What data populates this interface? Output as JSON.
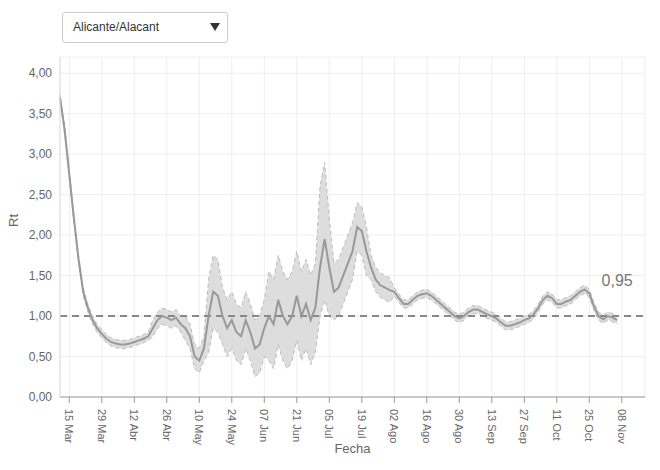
{
  "chart_data": {
    "type": "line",
    "dropdown": "Alicante/Alacant",
    "x_label": "Fecha",
    "y_label": "Rt",
    "color": "#999999",
    "band_color": "#dddddd",
    "categories": [
      null,
      null,
      "15 Mar",
      null,
      null,
      null,
      null,
      null,
      null,
      "29 Mar",
      null,
      null,
      null,
      null,
      null,
      null,
      "12 Abr",
      null,
      null,
      null,
      null,
      null,
      null,
      "26 Abr",
      null,
      null,
      null,
      null,
      null,
      null,
      "10 May",
      null,
      null,
      null,
      null,
      null,
      null,
      "24 May",
      null,
      null,
      null,
      null,
      null,
      null,
      "07 Jun",
      null,
      null,
      null,
      null,
      null,
      null,
      "21 Jun",
      null,
      null,
      null,
      null,
      null,
      null,
      "05 Jul",
      null,
      null,
      null,
      null,
      null,
      null,
      "19 Jul",
      null,
      null,
      null,
      null,
      null,
      null,
      "02 Ago",
      null,
      null,
      null,
      null,
      null,
      null,
      "16 Ago",
      null,
      null,
      null,
      null,
      null,
      null,
      "30 Ago",
      null,
      null,
      null,
      null,
      null,
      null,
      "13 Sep",
      null,
      null,
      null,
      null,
      null,
      null,
      "27 Sep",
      null,
      null,
      null,
      null,
      null,
      null,
      "11 Oct",
      null,
      null,
      null,
      null,
      null,
      null,
      "25 Oct",
      null,
      null,
      null,
      null,
      null,
      null,
      "08 Nov",
      null,
      null,
      null,
      null,
      null
    ],
    "values": [
      3.7,
      3.3,
      2.75,
      2.2,
      1.7,
      1.3,
      1.1,
      0.95,
      0.85,
      0.78,
      0.72,
      0.68,
      0.66,
      0.65,
      0.65,
      0.66,
      0.68,
      0.7,
      0.72,
      0.75,
      0.85,
      0.95,
      1.0,
      0.98,
      0.95,
      0.98,
      0.9,
      0.85,
      0.75,
      0.5,
      0.45,
      0.6,
      1.0,
      1.3,
      1.25,
      1.0,
      0.85,
      0.95,
      0.8,
      0.75,
      0.95,
      0.8,
      0.6,
      0.65,
      0.85,
      1.0,
      0.9,
      1.2,
      1.0,
      0.9,
      1.0,
      1.25,
      1.0,
      1.15,
      0.95,
      1.1,
      1.6,
      1.95,
      1.6,
      1.3,
      1.35,
      1.5,
      1.65,
      1.8,
      2.1,
      2.05,
      1.8,
      1.6,
      1.45,
      1.38,
      1.35,
      1.32,
      1.3,
      1.22,
      1.15,
      1.15,
      1.2,
      1.25,
      1.27,
      1.28,
      1.25,
      1.2,
      1.15,
      1.1,
      1.05,
      1.0,
      0.97,
      1.0,
      1.05,
      1.08,
      1.08,
      1.05,
      1.02,
      1.0,
      0.97,
      0.92,
      0.88,
      0.88,
      0.9,
      0.92,
      0.95,
      0.97,
      1.02,
      1.1,
      1.2,
      1.25,
      1.22,
      1.15,
      1.15,
      1.18,
      1.2,
      1.25,
      1.3,
      1.33,
      1.28,
      1.12,
      1.0,
      0.96,
      1.0,
      0.98,
      0.95,
      null,
      null,
      null,
      null,
      null,
      null
    ],
    "lower": [
      3.65,
      3.25,
      2.7,
      2.15,
      1.65,
      1.25,
      1.05,
      0.9,
      0.8,
      0.73,
      0.67,
      0.63,
      0.61,
      0.6,
      0.6,
      0.61,
      0.63,
      0.65,
      0.67,
      0.7,
      0.75,
      0.85,
      0.9,
      0.88,
      0.85,
      0.88,
      0.8,
      0.7,
      0.6,
      0.35,
      0.3,
      0.45,
      0.55,
      0.85,
      0.8,
      0.65,
      0.5,
      0.6,
      0.45,
      0.4,
      0.6,
      0.45,
      0.25,
      0.3,
      0.5,
      0.45,
      0.35,
      0.65,
      0.45,
      0.35,
      0.45,
      0.7,
      0.45,
      0.6,
      0.4,
      0.55,
      1.0,
      1.2,
      1.0,
      0.95,
      1.0,
      1.15,
      1.3,
      1.45,
      1.8,
      1.75,
      1.5,
      1.45,
      1.3,
      1.23,
      1.2,
      1.17,
      1.25,
      1.17,
      1.1,
      1.1,
      1.15,
      1.2,
      1.22,
      1.23,
      1.2,
      1.15,
      1.1,
      1.05,
      1.0,
      0.95,
      0.92,
      0.95,
      1.0,
      1.03,
      1.03,
      1.0,
      0.97,
      0.95,
      0.92,
      0.87,
      0.83,
      0.83,
      0.85,
      0.87,
      0.9,
      0.92,
      0.97,
      1.05,
      1.15,
      1.2,
      1.17,
      1.1,
      1.1,
      1.13,
      1.15,
      1.2,
      1.25,
      1.28,
      1.23,
      1.07,
      0.95,
      0.91,
      0.95,
      0.93,
      0.9,
      null,
      null,
      null,
      null,
      null,
      null
    ],
    "upper": [
      3.75,
      3.35,
      2.8,
      2.25,
      1.75,
      1.35,
      1.15,
      1.0,
      0.9,
      0.83,
      0.77,
      0.73,
      0.71,
      0.7,
      0.7,
      0.71,
      0.73,
      0.75,
      0.77,
      0.8,
      0.95,
      1.05,
      1.1,
      1.08,
      1.05,
      1.08,
      1.0,
      1.0,
      0.9,
      0.65,
      0.6,
      0.75,
      1.45,
      1.75,
      1.7,
      1.35,
      1.2,
      1.3,
      1.15,
      1.1,
      1.3,
      1.15,
      0.95,
      1.0,
      1.2,
      1.55,
      1.45,
      1.75,
      1.55,
      1.45,
      1.55,
      1.8,
      1.55,
      1.7,
      1.5,
      1.65,
      2.6,
      2.9,
      2.2,
      1.65,
      1.7,
      1.85,
      2.0,
      2.15,
      2.4,
      2.35,
      2.1,
      1.75,
      1.6,
      1.53,
      1.5,
      1.47,
      1.35,
      1.27,
      1.2,
      1.2,
      1.25,
      1.3,
      1.32,
      1.33,
      1.3,
      1.25,
      1.2,
      1.15,
      1.1,
      1.05,
      1.02,
      1.05,
      1.1,
      1.13,
      1.13,
      1.1,
      1.07,
      1.05,
      1.02,
      0.97,
      0.93,
      0.93,
      0.95,
      0.97,
      1.0,
      1.02,
      1.07,
      1.15,
      1.25,
      1.3,
      1.27,
      1.2,
      1.2,
      1.23,
      1.25,
      1.3,
      1.35,
      1.38,
      1.33,
      1.17,
      1.05,
      1.01,
      1.05,
      1.03,
      1.0,
      null,
      null,
      null,
      null,
      null,
      null
    ],
    "ylim": [
      0,
      4.2
    ],
    "yticks": [
      {
        "value": 0,
        "label": "0,00"
      },
      {
        "value": 0.5,
        "label": "0,50"
      },
      {
        "value": 1,
        "label": "1,00"
      },
      {
        "value": 1.5,
        "label": "1,50"
      },
      {
        "value": 2,
        "label": "2,00"
      },
      {
        "value": 2.5,
        "label": "2,50"
      },
      {
        "value": 3,
        "label": "3,00"
      },
      {
        "value": 3.5,
        "label": "3,50"
      },
      {
        "value": 4,
        "label": "4,00"
      }
    ],
    "grid": true,
    "reference_line": 1,
    "annotations": [
      {
        "label": "0,95",
        "value": 0.95
      }
    ]
  }
}
